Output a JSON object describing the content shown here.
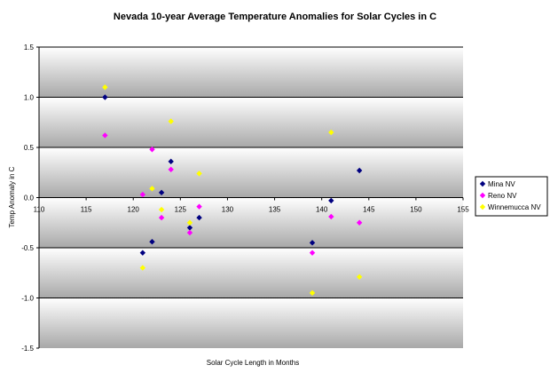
{
  "chart_data": {
    "type": "scatter",
    "title": "Nevada 10-year Average Temperature Anomalies for Solar Cycles in C",
    "xlabel": "Solar Cycle Length in Months",
    "ylabel": "Temp Anomaly in C",
    "xlim": [
      110,
      155
    ],
    "ylim": [
      -1.5,
      1.5
    ],
    "x_ticks": [
      "110",
      "115",
      "120",
      "125",
      "130",
      "135",
      "140",
      "145",
      "150",
      "155"
    ],
    "y_ticks": [
      "1.5",
      "1.0",
      "0.5",
      "0.0",
      "-0.5",
      "-1.0",
      "-1.5"
    ],
    "grid": "horizontal gridlines at 0.5 steps",
    "legend_position": "right",
    "series": [
      {
        "name": "Mina NV",
        "color": "#000080",
        "marker": "diamond",
        "points": [
          {
            "x": 117,
            "y": 1.0
          },
          {
            "x": 121,
            "y": -0.55
          },
          {
            "x": 122,
            "y": -0.44
          },
          {
            "x": 123,
            "y": 0.05
          },
          {
            "x": 124,
            "y": 0.36
          },
          {
            "x": 126,
            "y": -0.3
          },
          {
            "x": 127,
            "y": -0.2
          },
          {
            "x": 139,
            "y": -0.45
          },
          {
            "x": 141,
            "y": -0.03
          },
          {
            "x": 144,
            "y": 0.27
          }
        ]
      },
      {
        "name": "Reno NV",
        "color": "#ff00ff",
        "marker": "diamond",
        "points": [
          {
            "x": 117,
            "y": 0.62
          },
          {
            "x": 121,
            "y": 0.03
          },
          {
            "x": 122,
            "y": 0.48
          },
          {
            "x": 123,
            "y": -0.2
          },
          {
            "x": 124,
            "y": 0.28
          },
          {
            "x": 126,
            "y": -0.35
          },
          {
            "x": 127,
            "y": -0.09
          },
          {
            "x": 139,
            "y": -0.55
          },
          {
            "x": 141,
            "y": -0.19
          },
          {
            "x": 144,
            "y": -0.25
          }
        ]
      },
      {
        "name": "Winnemucca NV",
        "color": "#ffff00",
        "marker": "diamond",
        "points": [
          {
            "x": 117,
            "y": 1.1
          },
          {
            "x": 121,
            "y": -0.7
          },
          {
            "x": 122,
            "y": 0.09
          },
          {
            "x": 123,
            "y": -0.12
          },
          {
            "x": 124,
            "y": 0.76
          },
          {
            "x": 126,
            "y": -0.25
          },
          {
            "x": 127,
            "y": 0.24
          },
          {
            "x": 139,
            "y": -0.95
          },
          {
            "x": 141,
            "y": 0.65
          },
          {
            "x": 144,
            "y": -0.79
          }
        ]
      }
    ]
  }
}
